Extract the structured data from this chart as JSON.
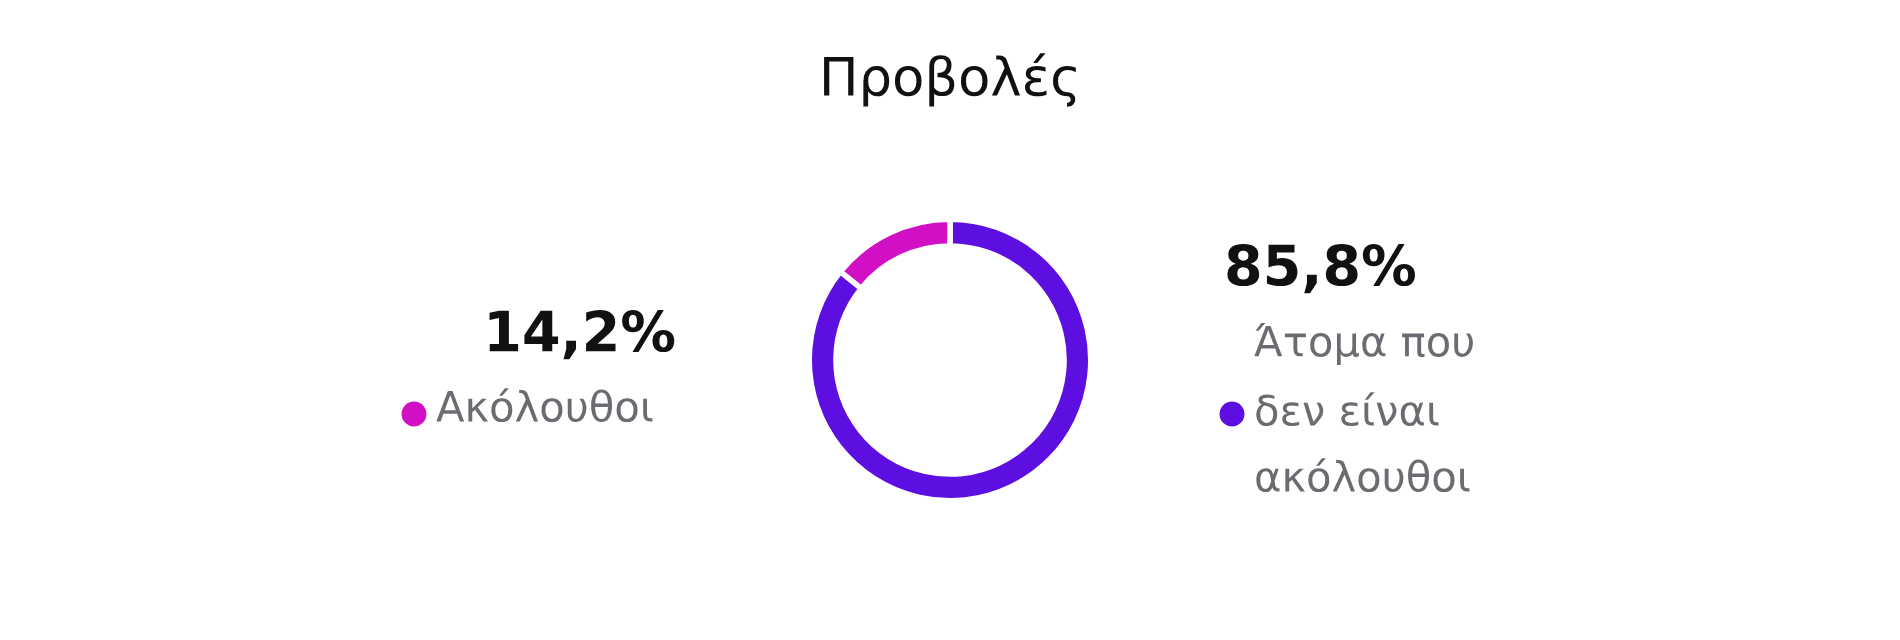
{
  "chart_data": {
    "type": "donut",
    "title": "Προβολές",
    "categories": [
      "Άτομα που δεν είναι ακόλουθοι",
      "Ακόλουθοι"
    ],
    "values": [
      85.8,
      14.2
    ],
    "colors": [
      "#5c0fe0",
      "#d10fc4"
    ],
    "value_labels": [
      "85,8%",
      "14,2%"
    ],
    "legend": "left"
  }
}
